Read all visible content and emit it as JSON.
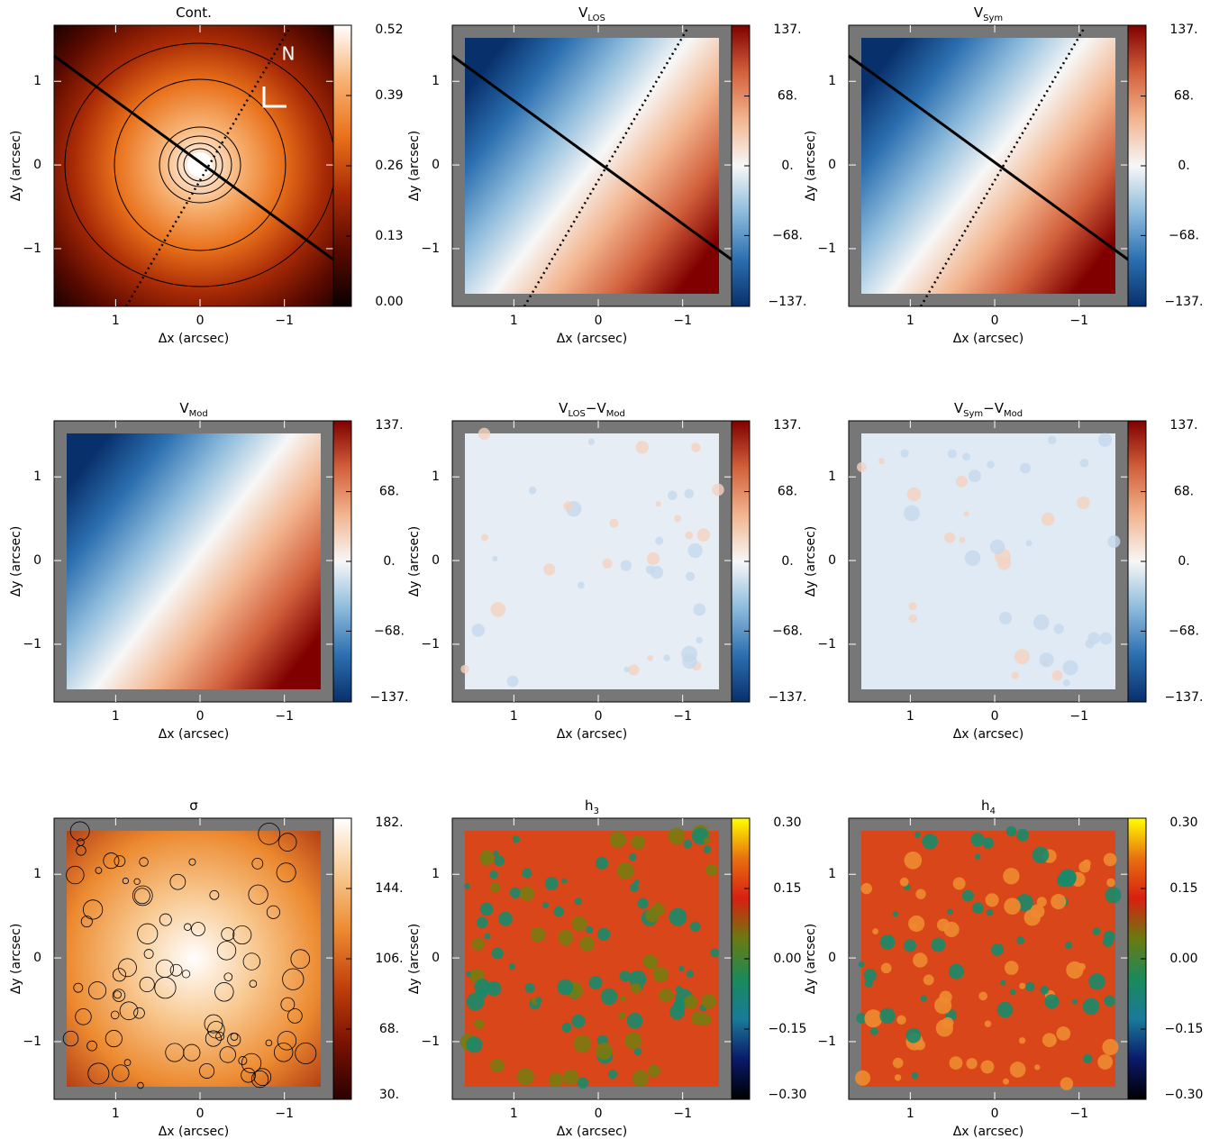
{
  "chart_data": [
    {
      "type": "heatmap",
      "title_parts": [
        {
          "text": "Cont."
        }
      ],
      "annotation": "N",
      "xlabel": "Δx (arcsec)",
      "ylabel": "Δy (arcsec)",
      "xlim": [
        1.73,
        -1.58
      ],
      "ylim": [
        -1.69,
        1.67
      ],
      "xticks": [
        1,
        0,
        {
          "value": -1,
          "label": "−1"
        }
      ],
      "yticks": [
        {
          "value": -1,
          "label": "−1"
        },
        0,
        1
      ],
      "clim": [
        0,
        0.52
      ],
      "cticks": [
        {
          "value": 0,
          "label": "0.00"
        },
        0.13,
        0.26,
        0.39,
        0.52
      ],
      "colormap": [
        "#0a0000",
        "#5a0a00",
        "#a82a06",
        "#e8701a",
        "#f7b070",
        "#ffffff"
      ]
    },
    {
      "type": "heatmap",
      "title_parts": [
        {
          "text": "V"
        },
        {
          "text": "LOS",
          "sub": true
        }
      ],
      "xlabel": "Δx (arcsec)",
      "ylabel": "Δy (arcsec)",
      "xlim": [
        1.73,
        -1.58
      ],
      "ylim": [
        -1.69,
        1.67
      ],
      "xticks": [
        1,
        0,
        {
          "value": -1,
          "label": "−1"
        }
      ],
      "yticks": [
        {
          "value": -1,
          "label": "−1"
        },
        0,
        1
      ],
      "clim": [
        -137,
        137
      ],
      "cticks": [
        {
          "value": -137,
          "label": "−137."
        },
        {
          "value": -68,
          "label": "−68."
        },
        {
          "value": 0,
          "label": "0."
        },
        {
          "value": 68,
          "label": "68."
        },
        {
          "value": 137,
          "label": "137."
        }
      ],
      "colormap": [
        "#08306b",
        "#2c6fb0",
        "#8dbbdc",
        "#f7f7f7",
        "#f2b48e",
        "#d2603c",
        "#800000"
      ]
    },
    {
      "type": "heatmap",
      "title_parts": [
        {
          "text": "V"
        },
        {
          "text": "Sym",
          "sub": true
        }
      ],
      "xlabel": "Δx (arcsec)",
      "ylabel": "Δy (arcsec)",
      "xlim": [
        1.73,
        -1.58
      ],
      "ylim": [
        -1.69,
        1.67
      ],
      "xticks": [
        1,
        0,
        {
          "value": -1,
          "label": "−1"
        }
      ],
      "yticks": [
        {
          "value": -1,
          "label": "−1"
        },
        0,
        1
      ],
      "clim": [
        -137,
        137
      ],
      "cticks": [
        {
          "value": -137,
          "label": "−137."
        },
        {
          "value": -68,
          "label": "−68."
        },
        {
          "value": 0,
          "label": "0."
        },
        {
          "value": 68,
          "label": "68."
        },
        {
          "value": 137,
          "label": "137."
        }
      ],
      "colormap": [
        "#08306b",
        "#2c6fb0",
        "#8dbbdc",
        "#f7f7f7",
        "#f2b48e",
        "#d2603c",
        "#800000"
      ]
    },
    {
      "type": "heatmap",
      "title_parts": [
        {
          "text": "V"
        },
        {
          "text": "Mod",
          "sub": true
        }
      ],
      "xlabel": "Δx (arcsec)",
      "ylabel": "Δy (arcsec)",
      "xlim": [
        1.73,
        -1.58
      ],
      "ylim": [
        -1.69,
        1.67
      ],
      "xticks": [
        1,
        0,
        {
          "value": -1,
          "label": "−1"
        }
      ],
      "yticks": [
        {
          "value": -1,
          "label": "−1"
        },
        0,
        1
      ],
      "clim": [
        -137,
        137
      ],
      "cticks": [
        {
          "value": -137,
          "label": "−137."
        },
        {
          "value": -68,
          "label": "−68."
        },
        {
          "value": 0,
          "label": "0."
        },
        {
          "value": 68,
          "label": "68."
        },
        {
          "value": 137,
          "label": "137."
        }
      ],
      "colormap": [
        "#08306b",
        "#2c6fb0",
        "#8dbbdc",
        "#f7f7f7",
        "#f2b48e",
        "#d2603c",
        "#800000"
      ]
    },
    {
      "type": "heatmap",
      "title_parts": [
        {
          "text": "V"
        },
        {
          "text": "LOS",
          "sub": true
        },
        {
          "text": "−V"
        },
        {
          "text": "Mod",
          "sub": true
        }
      ],
      "xlabel": "Δx (arcsec)",
      "ylabel": "Δy (arcsec)",
      "xlim": [
        1.73,
        -1.58
      ],
      "ylim": [
        -1.69,
        1.67
      ],
      "xticks": [
        1,
        0,
        {
          "value": -1,
          "label": "−1"
        }
      ],
      "yticks": [
        {
          "value": -1,
          "label": "−1"
        },
        0,
        1
      ],
      "clim": [
        -137,
        137
      ],
      "cticks": [
        {
          "value": -137,
          "label": "−137."
        },
        {
          "value": -68,
          "label": "−68."
        },
        {
          "value": 0,
          "label": "0."
        },
        {
          "value": 68,
          "label": "68."
        },
        {
          "value": 137,
          "label": "137."
        }
      ],
      "colormap": [
        "#08306b",
        "#2c6fb0",
        "#8dbbdc",
        "#f7f7f7",
        "#f2b48e",
        "#d2603c",
        "#800000"
      ]
    },
    {
      "type": "heatmap",
      "title_parts": [
        {
          "text": "V"
        },
        {
          "text": "Sym",
          "sub": true
        },
        {
          "text": "−V"
        },
        {
          "text": "Mod",
          "sub": true
        }
      ],
      "xlabel": "Δx (arcsec)",
      "ylabel": "Δy (arcsec)",
      "xlim": [
        1.73,
        -1.58
      ],
      "ylim": [
        -1.69,
        1.67
      ],
      "xticks": [
        1,
        0,
        {
          "value": -1,
          "label": "−1"
        }
      ],
      "yticks": [
        {
          "value": -1,
          "label": "−1"
        },
        0,
        1
      ],
      "clim": [
        -137,
        137
      ],
      "cticks": [
        {
          "value": -137,
          "label": "−137."
        },
        {
          "value": -68,
          "label": "−68."
        },
        {
          "value": 0,
          "label": "0."
        },
        {
          "value": 68,
          "label": "68."
        },
        {
          "value": 137,
          "label": "137."
        }
      ],
      "colormap": [
        "#08306b",
        "#2c6fb0",
        "#8dbbdc",
        "#f7f7f7",
        "#f2b48e",
        "#d2603c",
        "#800000"
      ]
    },
    {
      "type": "heatmap",
      "title_parts": [
        {
          "text": "σ"
        }
      ],
      "xlabel": "Δx (arcsec)",
      "ylabel": "Δy (arcsec)",
      "xlim": [
        1.73,
        -1.58
      ],
      "ylim": [
        -1.69,
        1.67
      ],
      "xticks": [
        1,
        0,
        {
          "value": -1,
          "label": "−1"
        }
      ],
      "yticks": [
        {
          "value": -1,
          "label": "−1"
        },
        0,
        1
      ],
      "clim": [
        30,
        182
      ],
      "cticks": [
        {
          "value": 30,
          "label": "30."
        },
        {
          "value": 68,
          "label": "68."
        },
        {
          "value": 106,
          "label": "106."
        },
        {
          "value": 144,
          "label": "144."
        },
        {
          "value": 182,
          "label": "182."
        }
      ],
      "colormap": [
        "#2a0000",
        "#7a1202",
        "#c0400c",
        "#ec8a30",
        "#f8c890",
        "#ffffff"
      ]
    },
    {
      "type": "heatmap",
      "title_parts": [
        {
          "text": "h"
        },
        {
          "text": "3",
          "sub": true
        }
      ],
      "xlabel": "Δx (arcsec)",
      "ylabel": "Δy (arcsec)",
      "xlim": [
        1.73,
        -1.58
      ],
      "ylim": [
        -1.69,
        1.67
      ],
      "xticks": [
        1,
        0,
        {
          "value": -1,
          "label": "−1"
        }
      ],
      "yticks": [
        {
          "value": -1,
          "label": "−1"
        },
        0,
        1
      ],
      "clim": [
        -0.3,
        0.3
      ],
      "cticks": [
        {
          "value": -0.3,
          "label": "−0.30"
        },
        {
          "value": -0.15,
          "label": "−0.15"
        },
        {
          "value": 0,
          "label": "0.00"
        },
        {
          "value": 0.15,
          "label": "0.15"
        },
        {
          "value": 0.3,
          "label": "0.30"
        }
      ],
      "colormap": [
        "#000000",
        "#0a1a6a",
        "#1a7a9a",
        "#1a8a5a",
        "#6a7a10",
        "#d82010",
        "#e87010",
        "#ffff00"
      ]
    },
    {
      "type": "heatmap",
      "title_parts": [
        {
          "text": "h"
        },
        {
          "text": "4",
          "sub": true
        }
      ],
      "xlabel": "Δx (arcsec)",
      "ylabel": "Δy (arcsec)",
      "xlim": [
        1.73,
        -1.58
      ],
      "ylim": [
        -1.69,
        1.67
      ],
      "xticks": [
        1,
        0,
        {
          "value": -1,
          "label": "−1"
        }
      ],
      "yticks": [
        {
          "value": -1,
          "label": "−1"
        },
        0,
        1
      ],
      "clim": [
        -0.3,
        0.3
      ],
      "cticks": [
        {
          "value": -0.3,
          "label": "−0.30"
        },
        {
          "value": -0.15,
          "label": "−0.15"
        },
        {
          "value": 0,
          "label": "0.00"
        },
        {
          "value": 0.15,
          "label": "0.15"
        },
        {
          "value": 0.3,
          "label": "0.30"
        }
      ],
      "colormap": [
        "#000000",
        "#0a1a6a",
        "#1a7a9a",
        "#1a8a5a",
        "#6a7a10",
        "#d82010",
        "#e87010",
        "#ffff00"
      ]
    }
  ]
}
